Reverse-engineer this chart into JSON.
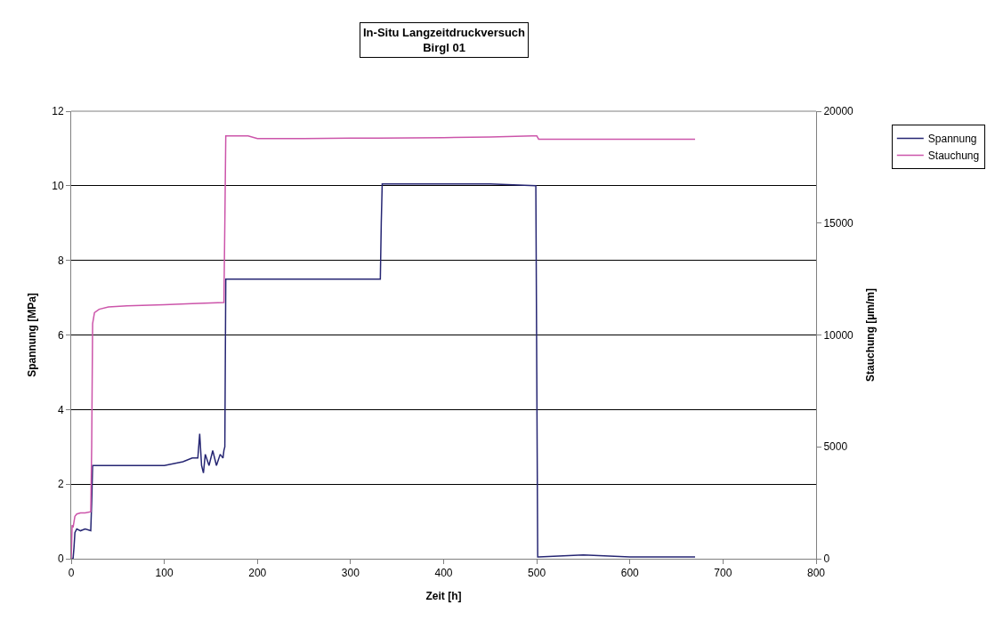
{
  "chart_data": {
    "type": "line",
    "title": "In-Situ Langzeitdruckversuch\nBirgl 01",
    "xlabel": "Zeit [h]",
    "ylabel": "Spannung [MPa]",
    "y2label": "Stauchung [µm/m]",
    "xlim": [
      0,
      800
    ],
    "xticks": [
      0,
      100,
      200,
      300,
      400,
      500,
      600,
      700,
      800
    ],
    "ylim": [
      0,
      12
    ],
    "yticks": [
      0,
      2,
      4,
      6,
      8,
      10,
      12
    ],
    "y2lim": [
      0,
      20000
    ],
    "y2ticks": [
      0,
      5000,
      10000,
      15000,
      20000
    ],
    "grid": "y",
    "legend": "right",
    "marker": "none",
    "line_style": "solid",
    "series": [
      {
        "name": "Spannung",
        "color": "#262673",
        "x": [
          0,
          2,
          3,
          4,
          6,
          10,
          15,
          21,
          22,
          23,
          30,
          60,
          100,
          120,
          130,
          136,
          138,
          140,
          142,
          144,
          148,
          152,
          156,
          160,
          163,
          164,
          165,
          166,
          200,
          250,
          300,
          332,
          333,
          334,
          400,
          450,
          499,
          500,
          501,
          502,
          550,
          600,
          650,
          670
        ],
        "values": [
          0,
          0,
          0.3,
          0.7,
          0.8,
          0.75,
          0.8,
          0.75,
          1.5,
          2.5,
          2.5,
          2.5,
          2.5,
          2.6,
          2.7,
          2.7,
          3.35,
          2.5,
          2.3,
          2.8,
          2.5,
          2.9,
          2.5,
          2.8,
          2.7,
          2.9,
          3.0,
          7.5,
          7.5,
          7.5,
          7.5,
          7.5,
          9,
          10.05,
          10.05,
          10.05,
          10.0,
          5,
          0.05,
          0.05,
          0.1,
          0.05,
          0.05,
          0.05
        ]
      },
      {
        "name": "Stauchung",
        "color": "#cc55aa",
        "axis": "y2",
        "x": [
          0,
          1,
          2,
          4,
          6,
          10,
          15,
          21,
          22,
          23,
          25,
          30,
          40,
          60,
          100,
          130,
          164,
          165,
          166,
          180,
          190,
          200,
          250,
          300,
          330,
          400,
          450,
          495,
          500,
          502,
          550,
          600,
          650,
          670
        ],
        "values": [
          0,
          1500,
          1400,
          1900,
          2000,
          2050,
          2050,
          2100,
          5000,
          10500,
          11000,
          11150,
          11250,
          11300,
          11350,
          11400,
          11450,
          15000,
          18900,
          18900,
          18900,
          18780,
          18780,
          18800,
          18800,
          18820,
          18850,
          18900,
          18900,
          18750,
          18750,
          18750,
          18750,
          18750
        ]
      }
    ]
  }
}
